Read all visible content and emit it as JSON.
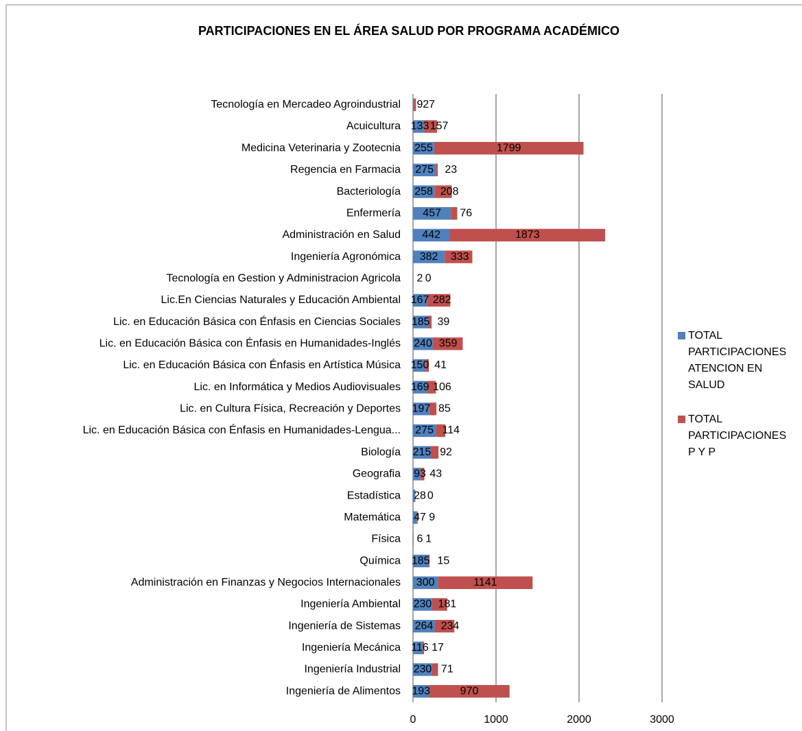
{
  "chart_data": {
    "type": "stacked_barh",
    "title": "PARTICIPACIONES EN EL ÁREA SALUD POR PROGRAMA ACADÉMICO",
    "categories": [
      "Tecnología en Mercadeo Agroindustrial",
      "Acuicultura",
      "Medicina Veterinaria y Zootecnia",
      "Regencia en Farmacia",
      "Bacteriología",
      "Enfermería",
      "Administración en Salud",
      "Ingeniería Agronómica",
      "Tecnología en Gestion y Administracion Agricola",
      "Lic.En Ciencias Naturales y Educación Ambiental",
      "Lic. en Educación Básica con Énfasis en Ciencias Sociales",
      "Lic. en Educación Básica con Énfasis en Humanidades-Inglés",
      "Lic. en Educación Básica con Énfasis en Artística Música",
      "Lic. en Informática y Medios Audiovisuales",
      "Lic. en Cultura Física, Recreación y Deportes",
      "Lic. en Educación Básica con Énfasis en Humanidades-Lengua...",
      "Biología",
      "Geografia",
      "Estadística",
      "Matemática",
      "Física",
      "Química",
      "Administración en Finanzas y Negocios Internacionales",
      "Ingeniería Ambiental",
      "Ingeniería de Sistemas",
      "Ingeniería Mecánica",
      "Ingeniería Industrial",
      "Ingeniería de Alimentos"
    ],
    "series": [
      {
        "name": "TOTAL PARTICIPACIONES ATENCION EN SALUD",
        "color": "#4f81bd",
        "values": [
          9,
          133,
          255,
          275,
          258,
          457,
          442,
          382,
          2,
          167,
          185,
          240,
          150,
          169,
          197,
          275,
          215,
          93,
          28,
          47,
          6,
          185,
          300,
          230,
          264,
          116,
          230,
          193
        ]
      },
      {
        "name": "TOTAL PARTICIPACIONES P Y P",
        "color": "#c0504d",
        "values": [
          27,
          157,
          1799,
          23,
          208,
          76,
          1873,
          333,
          0,
          282,
          39,
          359,
          41,
          106,
          85,
          114,
          92,
          43,
          0,
          9,
          1,
          15,
          1141,
          181,
          234,
          17,
          71,
          970
        ]
      }
    ],
    "xlim": [
      0,
      3000
    ],
    "xticks": [
      0,
      1000,
      2000,
      3000
    ],
    "grid": true,
    "legend": "right"
  }
}
